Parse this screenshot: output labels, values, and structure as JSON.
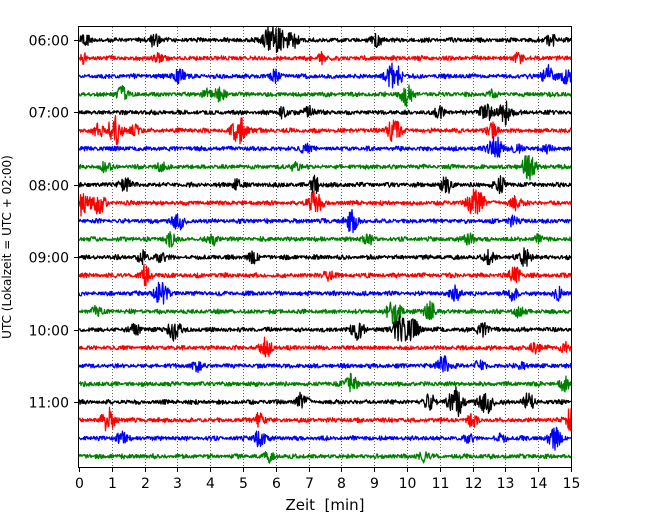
{
  "chart_data": {
    "type": "line",
    "title": "",
    "xlabel": "Zeit  [min]",
    "ylabel": "UTC (Lokalzeit = UTC + 02:00)",
    "xlim": [
      0,
      15
    ],
    "x_ticks": [
      0,
      1,
      2,
      3,
      4,
      5,
      6,
      7,
      8,
      9,
      10,
      11,
      12,
      13,
      14,
      15
    ],
    "x_tick_labels": [
      "0",
      "1",
      "2",
      "3",
      "4",
      "5",
      "6",
      "7",
      "8",
      "9",
      "10",
      "11",
      "12",
      "13",
      "14",
      "15"
    ],
    "y_tick_labels": [
      "06:00",
      "07:00",
      "08:00",
      "09:00",
      "10:00",
      "11:00"
    ],
    "y_tick_trace_index": [
      0,
      4,
      8,
      12,
      16,
      20
    ],
    "trace_interval_min": 15,
    "trace_start": "06:00",
    "trace_colors": [
      "#000000",
      "#ff0000",
      "#0000ff",
      "#008000"
    ],
    "vertical_grid": "dotted",
    "traces": [
      {
        "start": "06:00",
        "events": [
          [
            0.2,
            6
          ],
          [
            2.3,
            7
          ],
          [
            5.8,
            12
          ],
          [
            6.1,
            10
          ],
          [
            6.5,
            9
          ],
          [
            9.1,
            6
          ],
          [
            14.4,
            6
          ]
        ]
      },
      {
        "start": "06:15",
        "events": [
          [
            0.1,
            5
          ],
          [
            2.4,
            4
          ],
          [
            7.4,
            5
          ],
          [
            13.4,
            5
          ]
        ]
      },
      {
        "start": "06:30",
        "events": [
          [
            3.0,
            5
          ],
          [
            3.1,
            4
          ],
          [
            6.0,
            6
          ],
          [
            9.6,
            14
          ],
          [
            14.3,
            10
          ],
          [
            14.9,
            9
          ]
        ]
      },
      {
        "start": "06:45",
        "events": [
          [
            1.3,
            7
          ],
          [
            3.9,
            5
          ],
          [
            4.3,
            7
          ],
          [
            10.0,
            11
          ],
          [
            12.6,
            4
          ]
        ]
      },
      {
        "start": "07:00",
        "events": [
          [
            6.2,
            5
          ],
          [
            7.0,
            7
          ],
          [
            12.4,
            9
          ],
          [
            13.0,
            11
          ],
          [
            11.0,
            5
          ]
        ]
      },
      {
        "start": "07:15",
        "events": [
          [
            0.6,
            6
          ],
          [
            1.1,
            14
          ],
          [
            1.7,
            5
          ],
          [
            4.9,
            14
          ],
          [
            9.6,
            11
          ],
          [
            12.6,
            7
          ]
        ]
      },
      {
        "start": "07:30",
        "events": [
          [
            6.9,
            5
          ],
          [
            12.7,
            12
          ],
          [
            13.4,
            5
          ],
          [
            14.3,
            4
          ]
        ]
      },
      {
        "start": "07:45",
        "events": [
          [
            0.8,
            5
          ],
          [
            2.5,
            4
          ],
          [
            6.6,
            5
          ],
          [
            13.7,
            12
          ]
        ]
      },
      {
        "start": "08:00",
        "events": [
          [
            1.4,
            8
          ],
          [
            4.8,
            5
          ],
          [
            7.2,
            8
          ],
          [
            11.2,
            8
          ],
          [
            12.8,
            9
          ]
        ]
      },
      {
        "start": "08:15",
        "events": [
          [
            0.1,
            13
          ],
          [
            0.6,
            10
          ],
          [
            7.2,
            12
          ],
          [
            12.1,
            16
          ],
          [
            13.3,
            7
          ]
        ]
      },
      {
        "start": "08:30",
        "events": [
          [
            3.0,
            9
          ],
          [
            8.3,
            10
          ],
          [
            13.2,
            5
          ]
        ]
      },
      {
        "start": "08:45",
        "events": [
          [
            2.8,
            7
          ],
          [
            4.1,
            6
          ],
          [
            8.8,
            6
          ],
          [
            11.9,
            6
          ],
          [
            14.0,
            4
          ]
        ]
      },
      {
        "start": "09:00",
        "events": [
          [
            1.9,
            6
          ],
          [
            2.5,
            6
          ],
          [
            5.3,
            5
          ],
          [
            12.5,
            6
          ],
          [
            13.6,
            9
          ]
        ]
      },
      {
        "start": "09:15",
        "events": [
          [
            2.0,
            9
          ],
          [
            7.6,
            5
          ],
          [
            13.3,
            8
          ]
        ]
      },
      {
        "start": "09:30",
        "events": [
          [
            2.5,
            11
          ],
          [
            11.5,
            8
          ],
          [
            13.2,
            7
          ],
          [
            14.6,
            6
          ]
        ]
      },
      {
        "start": "09:45",
        "events": [
          [
            0.5,
            5
          ],
          [
            9.6,
            12
          ],
          [
            10.7,
            9
          ],
          [
            13.4,
            5
          ]
        ]
      },
      {
        "start": "10:00",
        "events": [
          [
            1.7,
            6
          ],
          [
            2.9,
            10
          ],
          [
            8.5,
            10
          ],
          [
            9.8,
            14
          ],
          [
            10.2,
            9
          ],
          [
            12.3,
            7
          ]
        ]
      },
      {
        "start": "10:15",
        "events": [
          [
            5.7,
            9
          ],
          [
            13.9,
            6
          ],
          [
            14.8,
            5
          ]
        ]
      },
      {
        "start": "10:30",
        "events": [
          [
            3.6,
            5
          ],
          [
            11.1,
            10
          ],
          [
            12.2,
            5
          ],
          [
            13.5,
            4
          ]
        ]
      },
      {
        "start": "10:45",
        "events": [
          [
            8.3,
            9
          ],
          [
            14.8,
            6
          ]
        ]
      },
      {
        "start": "11:00",
        "events": [
          [
            6.8,
            9
          ],
          [
            10.7,
            8
          ],
          [
            11.5,
            14
          ],
          [
            12.4,
            12
          ],
          [
            13.7,
            8
          ]
        ]
      },
      {
        "start": "11:15",
        "events": [
          [
            0.9,
            11
          ],
          [
            5.5,
            7
          ],
          [
            12.0,
            6
          ],
          [
            15.0,
            11
          ]
        ]
      },
      {
        "start": "11:30",
        "events": [
          [
            1.3,
            6
          ],
          [
            5.5,
            8
          ],
          [
            11.9,
            5
          ],
          [
            12.9,
            4
          ],
          [
            14.5,
            10
          ]
        ]
      },
      {
        "start": "11:45",
        "events": [
          [
            5.8,
            5
          ],
          [
            10.5,
            5
          ]
        ]
      }
    ]
  }
}
